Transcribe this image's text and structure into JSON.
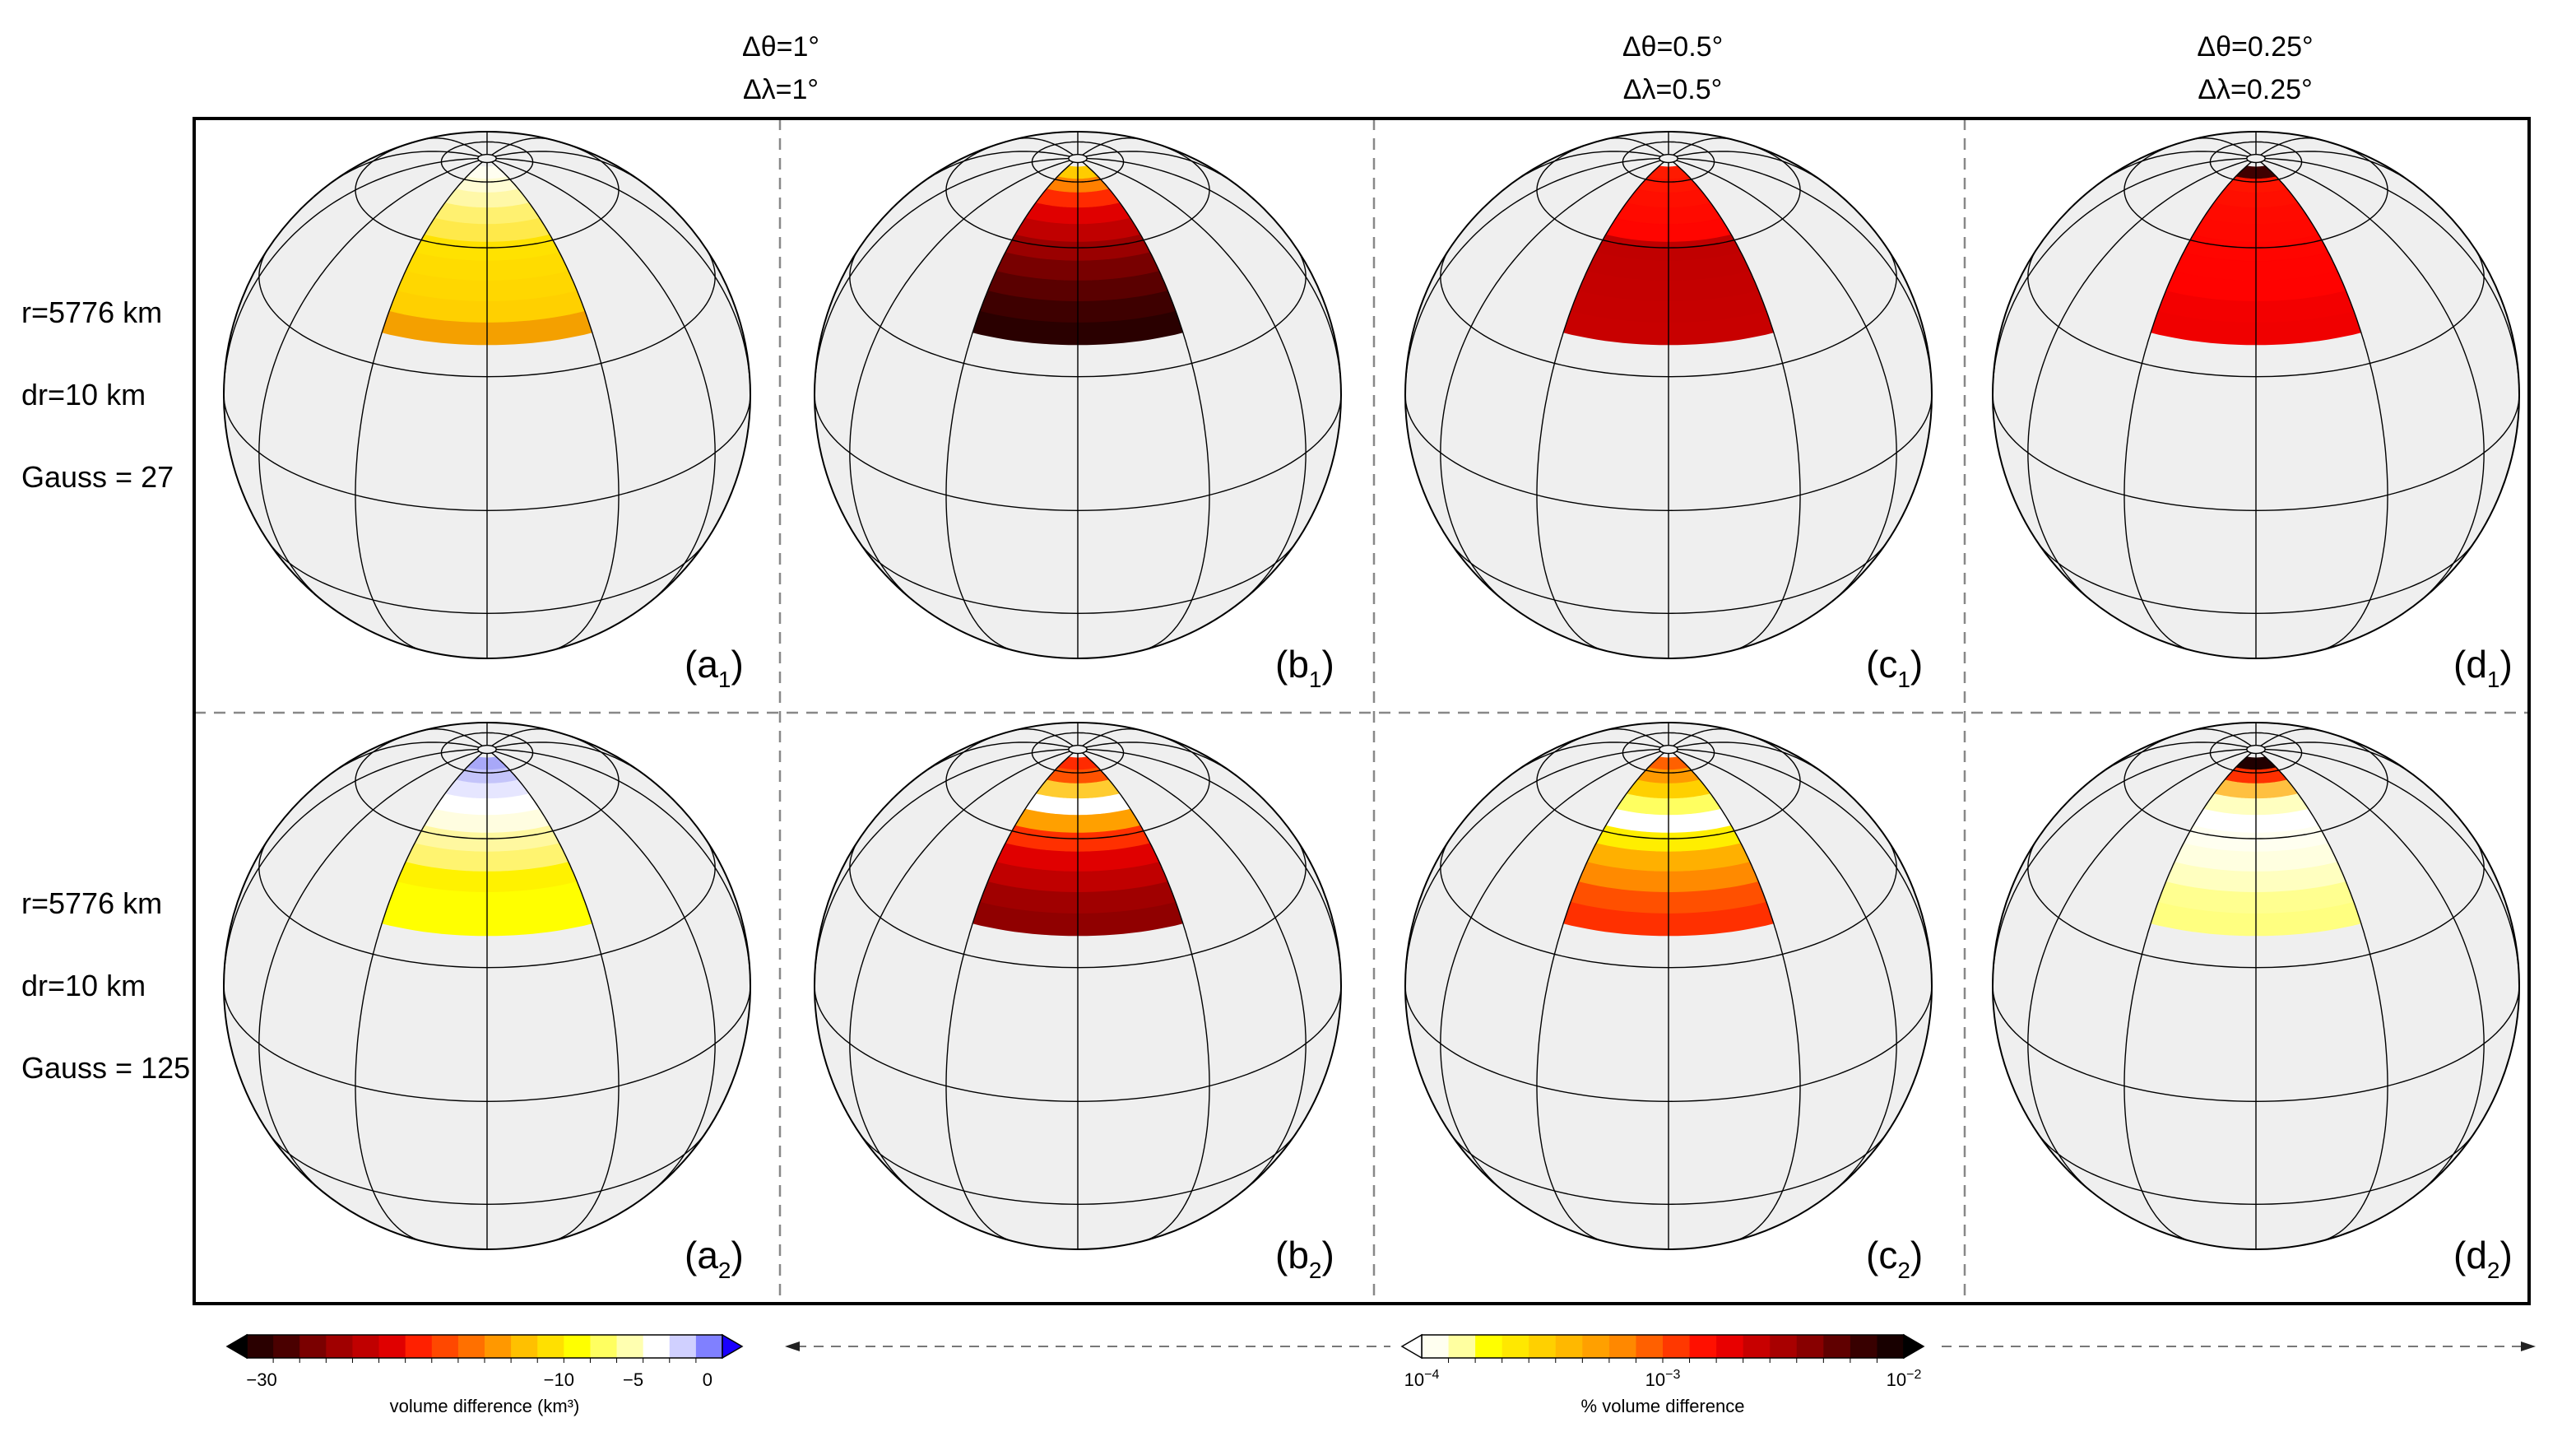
{
  "column_headers": [
    {
      "dtheta": "Δθ=1°",
      "dlambda": "Δλ=1°"
    },
    {
      "dtheta": "",
      "dlambda": ""
    },
    {
      "dtheta": "Δθ=0.5°",
      "dlambda": "Δλ=0.5°"
    },
    {
      "dtheta": "Δθ=0.25°",
      "dlambda": "Δλ=0.25°"
    }
  ],
  "row_labels": [
    {
      "r": "r=5776 km",
      "dr": "dr=10 km",
      "gauss": "Gauss = 27"
    },
    {
      "r": "r=5776 km",
      "dr": "dr=10 km",
      "gauss": "Gauss = 125"
    }
  ],
  "panels": [
    {
      "letter": "a",
      "sub": "1",
      "bands": [
        "#fffef0",
        "#fffcd4",
        "#fff8a8",
        "#fff170",
        "#ffe94a",
        "#ffe200",
        "#ffdc00",
        "#ffd700",
        "#ffd000",
        "#f4a000"
      ]
    },
    {
      "letter": "b",
      "sub": "1",
      "bands": [
        "#ffcc00",
        "#ff8000",
        "#ff2a00",
        "#e00000",
        "#c00000",
        "#9a0000",
        "#780000",
        "#5a0000",
        "#3e0000",
        "#2a0000"
      ]
    },
    {
      "letter": "c",
      "sub": "1",
      "bands": [
        "#ff1a00",
        "#ff1500",
        "#ff0f00",
        "#ff0a00",
        "#ff0500",
        "#c00000",
        "#c20000",
        "#c40000",
        "#c60000",
        "#c80000"
      ]
    },
    {
      "letter": "d",
      "sub": "1",
      "bands": [
        "#400000",
        "#ff1400",
        "#ff0f00",
        "#ff0a00",
        "#ff0800",
        "#ff0500",
        "#ff0300",
        "#ff0200",
        "#f30000",
        "#f00000"
      ]
    },
    {
      "letter": "a",
      "sub": "2",
      "bands": [
        "#a8a8f8",
        "#c4c4fa",
        "#e6e6ff",
        "#ffffff",
        "#fffde0",
        "#fff8a0",
        "#fff470",
        "#fff200",
        "#ffff00",
        "#ffff00"
      ]
    },
    {
      "letter": "b",
      "sub": "2",
      "bands": [
        "#ff2a00",
        "#ff5200",
        "#ffcc30",
        "#ffffff",
        "#ffa000",
        "#ff3000",
        "#e00000",
        "#c00000",
        "#a00000",
        "#900000"
      ]
    },
    {
      "letter": "c",
      "sub": "2",
      "bands": [
        "#ff6000",
        "#ff9a00",
        "#ffd000",
        "#ffff60",
        "#ffffff",
        "#ffee00",
        "#ffb000",
        "#ff8a00",
        "#ff5000",
        "#ff3000"
      ]
    },
    {
      "letter": "d",
      "sub": "2",
      "bands": [
        "#200000",
        "#ff3000",
        "#ffc040",
        "#ffffc0",
        "#ffffff",
        "#fffff0",
        "#ffffe0",
        "#ffffc0",
        "#ffff90",
        "#ffff80"
      ]
    }
  ],
  "colorbars": [
    {
      "title": "volume difference (km³)",
      "tick_labels": [
        "−30",
        "−10",
        "−5",
        "0"
      ],
      "tick_values": [
        -30,
        -10,
        -5,
        0
      ],
      "range": [
        -31,
        1
      ],
      "low_extend_color": "#000000",
      "high_extend_color": "#1a00ff",
      "colors": [
        "#2a0000",
        "#4a0000",
        "#7a0000",
        "#a00000",
        "#c00000",
        "#e00000",
        "#ff2000",
        "#ff4800",
        "#ff7000",
        "#ff9800",
        "#ffc000",
        "#ffe000",
        "#ffff00",
        "#ffff60",
        "#ffffb0",
        "#ffffff",
        "#d0d0ff",
        "#8080ff"
      ]
    },
    {
      "title": "% volume difference",
      "tick_labels": [
        "10",
        "10",
        "10"
      ],
      "tick_exponents": [
        "−4",
        "−3",
        "−2"
      ],
      "tick_values": [
        -4,
        -3,
        -2
      ],
      "range": [
        -4,
        -2
      ],
      "low_extend_color": "#ffffff",
      "high_extend_color": "#000000",
      "colors": [
        "#fffff0",
        "#ffffa0",
        "#ffff00",
        "#ffe800",
        "#ffd000",
        "#ffb800",
        "#ffa000",
        "#ff8800",
        "#ff6000",
        "#ff3800",
        "#ff1000",
        "#e80000",
        "#c80000",
        "#a80000",
        "#880000",
        "#600000",
        "#380000",
        "#180000"
      ]
    }
  ],
  "colors": {
    "sphere_fill": "#efefef",
    "grid_line": "#000000",
    "frame": "#000000",
    "divider": "#888888"
  }
}
